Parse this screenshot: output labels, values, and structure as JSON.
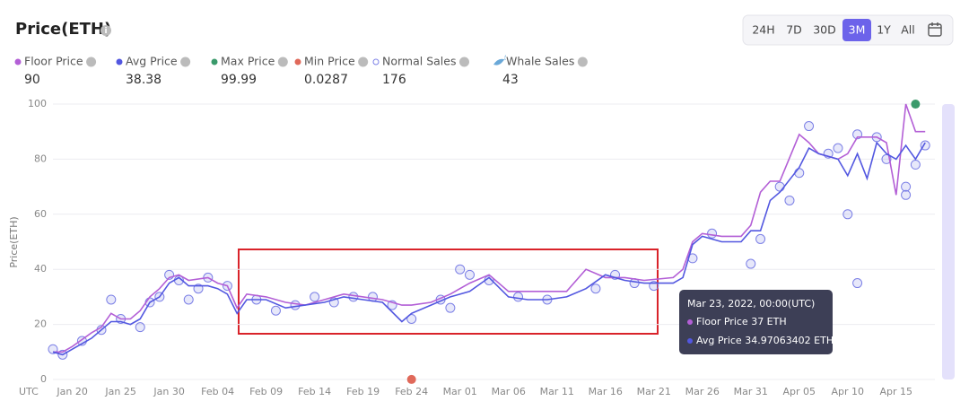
{
  "header": {
    "title": "Price(ETH)"
  },
  "range_buttons": [
    "24H",
    "7D",
    "30D",
    "3M",
    "1Y",
    "All"
  ],
  "active_range": 3,
  "tooltip": {
    "date": "Mar 23, 2022, 00:00(UTC)",
    "floor": "Floor Price 37 ETH",
    "avg": "Avg Price 34.97063402 ETH"
  },
  "chart_data": {
    "type": "line",
    "y_axis_label": "Price(ETH)",
    "x_axis_label": "UTC",
    "x": [
      "Jan 18",
      "Jan 19",
      "Jan 20",
      "Jan 22",
      "Jan 23",
      "Jan 24",
      "Jan 25",
      "Jan 26",
      "Jan 27",
      "Jan 28",
      "Jan 29",
      "Jan 30",
      "Jan 31",
      "Feb 01",
      "Feb 03",
      "Feb 04",
      "Feb 05",
      "Feb 06",
      "Feb 07",
      "Feb 09",
      "Feb 11",
      "Feb 13",
      "Feb 15",
      "Feb 17",
      "Feb 19",
      "Feb 21",
      "Feb 23",
      "Feb 24",
      "Feb 26",
      "Feb 28",
      "Mar 02",
      "Mar 04",
      "Mar 06",
      "Mar 08",
      "Mar 10",
      "Mar 12",
      "Mar 14",
      "Mar 16",
      "Mar 18",
      "Mar 20",
      "Mar 23",
      "Mar 24",
      "Mar 25",
      "Mar 26",
      "Mar 28",
      "Mar 30",
      "Mar 31",
      "Apr 01",
      "Apr 02",
      "Apr 03",
      "Apr 05",
      "Apr 06",
      "Apr 07",
      "Apr 09",
      "Apr 10",
      "Apr 11",
      "Apr 12",
      "Apr 13",
      "Apr 14",
      "Apr 15",
      "Apr 16",
      "Apr 17",
      "Apr 18"
    ],
    "series": [
      {
        "name": "Floor Price",
        "color": "#b35fd6",
        "summary": 90,
        "values": [
          10,
          10,
          12,
          17,
          19,
          24,
          22,
          22,
          25,
          30,
          33,
          37,
          38,
          36,
          37,
          35,
          34,
          26,
          31,
          30,
          28,
          27,
          29,
          31,
          30,
          29,
          27,
          27,
          28,
          31,
          35,
          38,
          32,
          32,
          32,
          32,
          40,
          37,
          37,
          36,
          37,
          40,
          50,
          53,
          52,
          52,
          56,
          68,
          72,
          72,
          89,
          86,
          82,
          80,
          82,
          88,
          88,
          88,
          86,
          67,
          100,
          90,
          90
        ]
      },
      {
        "name": "Avg Price",
        "color": "#5257e0",
        "summary": 38.38,
        "values": [
          10,
          9,
          11,
          15,
          18,
          21,
          21,
          20,
          22,
          28,
          30,
          35,
          37,
          34,
          34,
          33,
          31,
          24,
          29,
          29,
          26,
          27,
          28,
          30,
          29,
          28,
          21,
          24,
          27,
          30,
          32,
          37,
          30,
          29,
          29,
          30,
          33,
          38,
          36,
          35,
          34.97063402,
          37,
          49,
          52,
          50,
          50,
          54,
          54,
          65,
          68,
          77,
          84,
          82,
          80,
          74,
          82,
          73,
          86,
          82,
          80,
          85,
          80,
          86
        ]
      }
    ],
    "scatter": {
      "name": "Normal Sales",
      "color": "#7c80e6",
      "count": 176,
      "x": [
        "Jan 18",
        "Jan 19",
        "Jan 21",
        "Jan 23",
        "Jan 24",
        "Jan 25",
        "Jan 27",
        "Jan 28",
        "Jan 29",
        "Jan 30",
        "Jan 31",
        "Feb 01",
        "Feb 02",
        "Feb 03",
        "Feb 05",
        "Feb 08",
        "Feb 10",
        "Feb 12",
        "Feb 14",
        "Feb 16",
        "Feb 18",
        "Feb 20",
        "Feb 22",
        "Feb 24",
        "Feb 27",
        "Feb 28",
        "Mar 01",
        "Mar 02",
        "Mar 04",
        "Mar 07",
        "Mar 10",
        "Mar 15",
        "Mar 17",
        "Mar 19",
        "Mar 21",
        "Mar 25",
        "Mar 27",
        "Mar 31",
        "Apr 01",
        "Apr 03",
        "Apr 04",
        "Apr 05",
        "Apr 06",
        "Apr 08",
        "Apr 09",
        "Apr 10",
        "Apr 11",
        "Apr 11",
        "Apr 13",
        "Apr 14",
        "Apr 16",
        "Apr 16",
        "Apr 17",
        "Apr 18"
      ],
      "values": [
        11,
        9,
        14,
        18,
        29,
        22,
        19,
        28,
        30,
        38,
        36,
        29,
        33,
        37,
        34,
        29,
        25,
        27,
        30,
        28,
        30,
        30,
        27,
        22,
        29,
        26,
        40,
        38,
        36,
        30,
        29,
        33,
        38,
        35,
        34,
        44,
        53,
        42,
        51,
        70,
        65,
        75,
        92,
        82,
        84,
        60,
        35,
        89,
        88,
        80,
        70,
        67,
        78,
        85
      ]
    },
    "whale_sales": {
      "name": "Whale Sales",
      "count": 43
    },
    "max_price": {
      "name": "Max Price",
      "color": "#3a9a6b",
      "value": 99.99,
      "x": "Apr 17"
    },
    "min_price": {
      "name": "Min Price",
      "color": "#e0695a",
      "value": 0.0287,
      "x": "Feb 24"
    },
    "xlim": [
      "Jan 18",
      "Apr 19"
    ],
    "xticks": [
      "Jan 20",
      "Jan 25",
      "Jan 30",
      "Feb 04",
      "Feb 09",
      "Feb 14",
      "Feb 19",
      "Feb 24",
      "Mar 01",
      "Mar 06",
      "Mar 11",
      "Mar 16",
      "Mar 21",
      "Mar 26",
      "Mar 31",
      "Apr 05",
      "Apr 10",
      "Apr 15"
    ],
    "ylim": [
      0,
      100
    ],
    "yticks": [
      0,
      20,
      40,
      60,
      80,
      100
    ],
    "grid": true
  }
}
